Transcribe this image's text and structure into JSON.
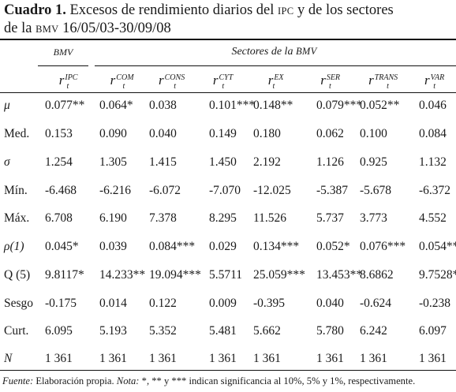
{
  "title": {
    "label": "Cuadro 1.",
    "line1_a": "Excesos de rendimiento diarios del",
    "abbr1": "IPC",
    "line1_b": "y de los sectores",
    "line2_a": "de la",
    "abbr2": "BMV",
    "line2_b": "16/05/03-30/09/08"
  },
  "header": {
    "group_bmv": "BMV",
    "group_sectores_a": "Sectores de la",
    "group_sectores_abbr": "BMV",
    "symbol_base": "r",
    "symbol_sub": "t",
    "columns": [
      "IPC",
      "COM",
      "CONS",
      "CYT",
      "EX",
      "SER",
      "TRANS",
      "VAR"
    ]
  },
  "rows": [
    {
      "label": "μ",
      "italic": true,
      "values": [
        "0.077**",
        "0.064*",
        "0.038",
        "0.101***",
        "0.148**",
        "0.079***",
        "0.052**",
        "0.046"
      ]
    },
    {
      "label": "Med.",
      "italic": false,
      "values": [
        "0.153",
        "0.090",
        "0.040",
        "0.149",
        "0.180",
        "0.062",
        "0.100",
        "0.084"
      ]
    },
    {
      "label": "σ",
      "italic": true,
      "values": [
        "1.254",
        "1.305",
        "1.415",
        "1.450",
        "2.192",
        "1.126",
        "0.925",
        "1.132"
      ]
    },
    {
      "label": "Mín.",
      "italic": false,
      "values": [
        "-6.468",
        "-6.216",
        "-6.072",
        "-7.070",
        "-12.025",
        "-5.387",
        "-5.678",
        "-6.372"
      ]
    },
    {
      "label": "Máx.",
      "italic": false,
      "values": [
        "6.708",
        "6.190",
        "7.378",
        "8.295",
        "11.526",
        "5.737",
        "3.773",
        "4.552"
      ]
    },
    {
      "label": "ρ(1)",
      "italic": true,
      "values": [
        "0.045*",
        "0.039",
        "0.084***",
        "0.029",
        "0.134***",
        "0.052*",
        "0.076***",
        "0.054**"
      ]
    },
    {
      "label": "Q (5)",
      "italic": false,
      "values": [
        "9.8117*",
        "14.233**",
        "19.094***",
        "5.5711",
        "25.059***",
        "13.453**",
        "8.6862",
        "9.7528*"
      ]
    },
    {
      "label": "Sesgo",
      "italic": false,
      "values": [
        "-0.175",
        "0.014",
        "0.122",
        "0.009",
        "-0.395",
        "0.040",
        "-0.624",
        "-0.238"
      ]
    },
    {
      "label": "Curt.",
      "italic": false,
      "values": [
        "6.095",
        "5.193",
        "5.352",
        "5.481",
        "5.662",
        "5.780",
        "6.242",
        "6.097"
      ]
    },
    {
      "label": "N",
      "italic": true,
      "values": [
        "1 361",
        "1 361",
        "1 361",
        "1 361",
        "1 361",
        "1 361",
        "1 361",
        "1 361"
      ]
    }
  ],
  "note": {
    "fuente_label": "Fuente:",
    "fuente_text": "Elaboración propia.",
    "nota_label": "Nota:",
    "nota_text": "*, ** y *** indican significancia al 10%, 5% y 1%, respectivamente."
  }
}
